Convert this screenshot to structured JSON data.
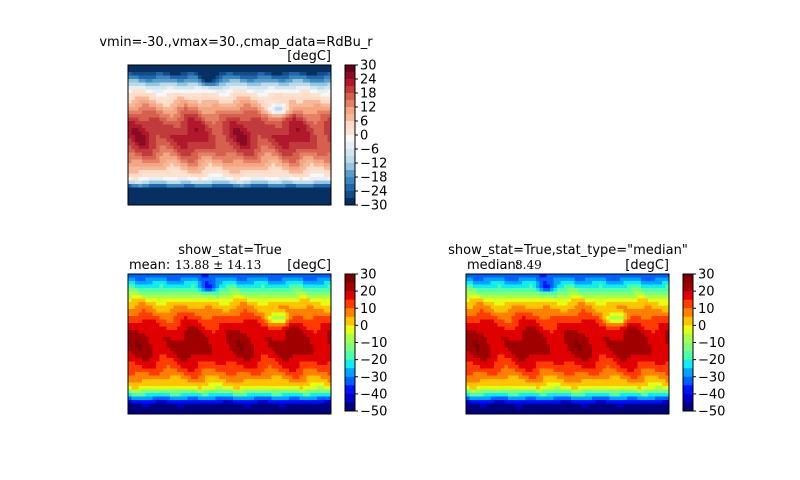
{
  "chart_data": [
    {
      "type": "heatmap",
      "title": "vmin=-30.,vmax=30.,cmap_data=RdBu_r",
      "units": "[degC]",
      "colormap": "RdBu_r",
      "vmin": -30,
      "vmax": 30,
      "levels": [
        -30,
        -27,
        -24,
        -21,
        -18,
        -15,
        -12,
        -9,
        -6,
        -3,
        0,
        3,
        6,
        9,
        12,
        15,
        18,
        21,
        24,
        27,
        30
      ],
      "colorbar_ticks": [
        "30",
        "24",
        "18",
        "12",
        "6",
        "0",
        "−6",
        "−12",
        "−18",
        "−24",
        "−30"
      ],
      "colorbar_tick_values": [
        30,
        24,
        18,
        12,
        6,
        0,
        -6,
        -12,
        -18,
        -24,
        -30
      ],
      "stat_label": "",
      "stat_value": ""
    },
    {
      "type": "heatmap",
      "title": "show_stat=True",
      "units": "[degC]",
      "colormap": "jet",
      "vmin": -50,
      "vmax": 30,
      "levels": [
        -50,
        -45,
        -40,
        -35,
        -30,
        -25,
        -20,
        -15,
        -10,
        -5,
        0,
        5,
        10,
        15,
        20,
        25,
        30
      ],
      "colorbar_ticks": [
        "30",
        "20",
        "10",
        "0",
        "−10",
        "−20",
        "−30",
        "−40",
        "−50"
      ],
      "colorbar_tick_values": [
        30,
        20,
        10,
        0,
        -10,
        -20,
        -30,
        -40,
        -50
      ],
      "stat_label": "mean:",
      "stat_value": "13.88 ± 14.13"
    },
    {
      "type": "heatmap",
      "title": "show_stat=True,stat_type=\"median\"",
      "units": "[degC]",
      "colormap": "jet",
      "vmin": -50,
      "vmax": 30,
      "levels": [
        -50,
        -45,
        -40,
        -35,
        -30,
        -25,
        -20,
        -15,
        -10,
        -5,
        0,
        5,
        10,
        15,
        20,
        25,
        30
      ],
      "colorbar_ticks": [
        "30",
        "20",
        "10",
        "0",
        "−10",
        "−20",
        "−30",
        "−40",
        "−50"
      ],
      "colorbar_tick_values": [
        30,
        20,
        10,
        0,
        -10,
        -20,
        -30,
        -40,
        -50
      ],
      "stat_label": "median:",
      "stat_value": "8.49"
    }
  ],
  "colors": {
    "rdbu_r": [
      "#053061",
      "#134c87",
      "#2166ac",
      "#3a87bd",
      "#5b9ecb",
      "#92c5de",
      "#bcdaea",
      "#d1e5f0",
      "#e7eef4",
      "#f7f7f7",
      "#fbe3d4",
      "#fddbc7",
      "#f7b799",
      "#f4a582",
      "#e48066",
      "#d6604d",
      "#c13b3c",
      "#b2182b",
      "#8a0b25",
      "#67001f"
    ],
    "jet": [
      "#00007f",
      "#0000c8",
      "#0010ff",
      "#0060ff",
      "#00a4ff",
      "#10ecf0",
      "#4dffaa",
      "#7dff7a",
      "#aaff4d",
      "#e4ff13",
      "#ffc400",
      "#ff7f00",
      "#ff3b00",
      "#e00000",
      "#a00000",
      "#7f0000"
    ],
    "frame": "#000000"
  }
}
